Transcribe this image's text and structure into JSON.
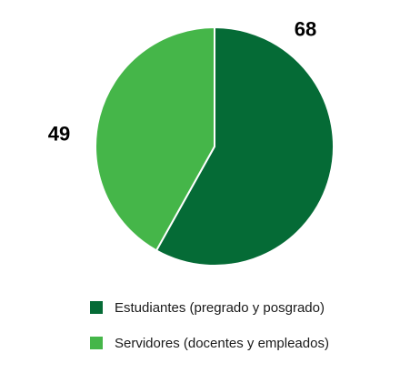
{
  "chart_data": {
    "type": "pie",
    "title": "",
    "start_angle": "12 o'clock",
    "direction": "clockwise",
    "slices": [
      {
        "label": "Estudiantes (pregrado y posgrado)",
        "value": 68,
        "color": "#056b36"
      },
      {
        "label": "Servidores (docentes y empleados)",
        "value": 49,
        "color": "#45b649"
      }
    ],
    "data_labels": [
      "68",
      "49"
    ],
    "legend": {
      "position": "bottom",
      "items": [
        "Estudiantes (pregrado y posgrado)",
        "Servidores (docentes y empleados)"
      ]
    }
  }
}
